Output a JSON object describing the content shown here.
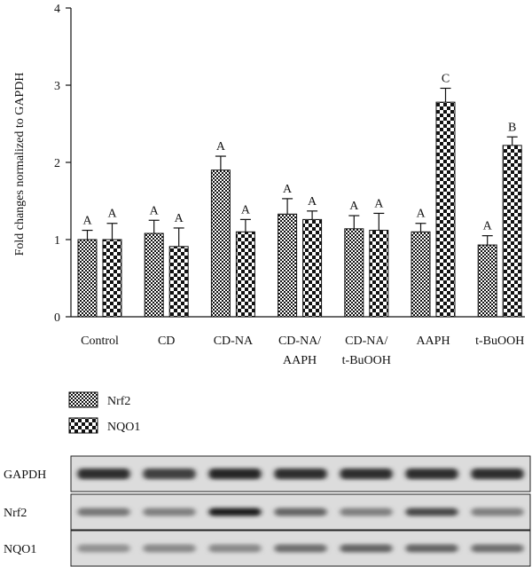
{
  "chart_data": {
    "type": "bar",
    "ylabel": "Fold changes normalized to GAPDH",
    "ylim": [
      0,
      4
    ],
    "yticks": [
      0,
      1,
      2,
      3,
      4
    ],
    "categories": [
      [
        "Control"
      ],
      [
        "CD"
      ],
      [
        "CD-NA"
      ],
      [
        "CD-NA/",
        "AAPH"
      ],
      [
        "CD-NA/",
        "t-BuOOH"
      ],
      [
        "AAPH"
      ],
      [
        "t-BuOOH"
      ]
    ],
    "series": [
      {
        "name": "Nrf2",
        "pattern": "fine-checker",
        "values": [
          1.0,
          1.08,
          1.9,
          1.33,
          1.14,
          1.1,
          0.93
        ],
        "errors": [
          0.12,
          0.17,
          0.18,
          0.2,
          0.17,
          0.11,
          0.12
        ],
        "labels": [
          "A",
          "A",
          "A",
          "A",
          "A",
          "A",
          "A"
        ]
      },
      {
        "name": "NQO1",
        "pattern": "coarse-checker",
        "values": [
          1.0,
          0.91,
          1.1,
          1.26,
          1.12,
          2.78,
          2.22
        ],
        "errors": [
          0.21,
          0.24,
          0.16,
          0.11,
          0.22,
          0.18,
          0.11
        ],
        "labels": [
          "A",
          "A",
          "A",
          "A",
          "A",
          "C",
          "B"
        ]
      }
    ],
    "grid": false,
    "legend_position": "bottom-left"
  },
  "blot": {
    "rows": [
      {
        "label": "GAPDH",
        "band_intensity": [
          0.85,
          0.75,
          0.9,
          0.85,
          0.85,
          0.85,
          0.85
        ],
        "band_height": 1.0
      },
      {
        "label": "Nrf2",
        "band_intensity": [
          0.45,
          0.4,
          0.95,
          0.55,
          0.4,
          0.7,
          0.4
        ],
        "band_height": 0.75
      },
      {
        "label": "NQO1",
        "band_intensity": [
          0.3,
          0.35,
          0.35,
          0.5,
          0.55,
          0.55,
          0.5
        ],
        "band_height": 0.75
      }
    ]
  }
}
